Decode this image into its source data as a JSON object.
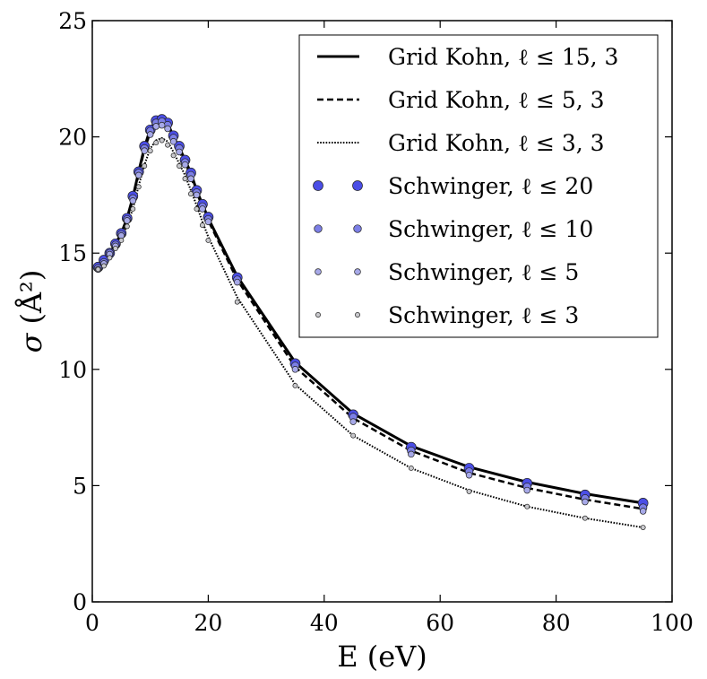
{
  "chart_data": {
    "type": "line",
    "xlabel": "E (eV)",
    "ylabel_symbol": "σ",
    "ylabel_unit": "(Å²)",
    "xlim": [
      0,
      100
    ],
    "ylim": [
      0,
      25
    ],
    "xticks": [
      0,
      20,
      40,
      60,
      80,
      100
    ],
    "yticks": [
      0,
      5,
      10,
      15,
      20,
      25
    ],
    "legend_position": "top-right",
    "series": [
      {
        "name": "Grid Kohn, ℓ ≤ 15, 3",
        "kind": "line",
        "style": "solid",
        "color": "#000000",
        "x": [
          1,
          2,
          3,
          4,
          5,
          6,
          7,
          8,
          9,
          10,
          11,
          12,
          13,
          14,
          15,
          16,
          17,
          18,
          19,
          20,
          25,
          35,
          45,
          55,
          65,
          75,
          85,
          95
        ],
        "y": [
          14.35,
          14.6,
          15.0,
          15.4,
          15.85,
          16.5,
          17.4,
          18.5,
          19.55,
          20.35,
          20.7,
          20.75,
          20.6,
          20.0,
          19.55,
          19.0,
          18.45,
          17.7,
          17.1,
          16.5,
          14.0,
          10.3,
          8.1,
          6.7,
          5.8,
          5.15,
          4.65,
          4.25
        ]
      },
      {
        "name": "Grid Kohn, ℓ ≤ 5, 3",
        "kind": "line",
        "style": "dashed",
        "color": "#000000",
        "x": [
          1,
          2,
          3,
          4,
          5,
          6,
          7,
          8,
          9,
          10,
          11,
          12,
          13,
          14,
          15,
          16,
          17,
          18,
          19,
          20,
          25,
          35,
          45,
          55,
          65,
          75,
          85,
          95
        ],
        "y": [
          14.3,
          14.55,
          14.95,
          15.35,
          15.8,
          16.45,
          17.3,
          18.4,
          19.45,
          20.2,
          20.55,
          20.6,
          20.45,
          19.9,
          19.4,
          18.9,
          18.3,
          17.6,
          17.0,
          16.4,
          13.85,
          10.1,
          7.9,
          6.5,
          5.55,
          4.9,
          4.4,
          4.0
        ]
      },
      {
        "name": "Grid Kohn, ℓ ≤ 3, 3",
        "kind": "line",
        "style": "dotted",
        "color": "#000000",
        "x": [
          1,
          2,
          3,
          4,
          5,
          6,
          7,
          8,
          9,
          10,
          11,
          12,
          13,
          14,
          15,
          16,
          17,
          18,
          19,
          20,
          25,
          35,
          45,
          55,
          65,
          75,
          85,
          95
        ],
        "y": [
          14.3,
          14.5,
          14.85,
          15.25,
          15.6,
          16.2,
          16.9,
          17.9,
          18.8,
          19.5,
          19.85,
          19.95,
          19.8,
          19.35,
          18.85,
          18.35,
          17.7,
          17.05,
          16.35,
          15.7,
          13.1,
          9.35,
          7.15,
          5.75,
          4.8,
          4.1,
          3.6,
          3.2
        ]
      },
      {
        "name": "Schwinger, ℓ ≤ 20",
        "kind": "scatter",
        "color": "#4b4ee6",
        "radius": 5.5,
        "x": [
          1,
          2,
          3,
          4,
          5,
          6,
          7,
          8,
          9,
          10,
          11,
          12,
          13,
          14,
          15,
          16,
          17,
          18,
          19,
          20,
          25,
          35,
          45,
          55,
          65,
          75,
          85,
          95
        ],
        "y": [
          14.4,
          14.7,
          15.0,
          15.4,
          15.85,
          16.5,
          17.45,
          18.5,
          19.6,
          20.3,
          20.7,
          20.75,
          20.6,
          20.05,
          19.6,
          19.0,
          18.45,
          17.7,
          17.1,
          16.55,
          13.95,
          10.25,
          8.05,
          6.65,
          5.75,
          5.1,
          4.6,
          4.25
        ]
      },
      {
        "name": "Schwinger, ℓ ≤ 10",
        "kind": "scatter",
        "color": "#7c7fe6",
        "radius": 4.3,
        "x": [
          1,
          2,
          3,
          4,
          5,
          6,
          7,
          8,
          9,
          10,
          11,
          12,
          13,
          14,
          15,
          16,
          17,
          18,
          19,
          20,
          25,
          35,
          45,
          55,
          65,
          75,
          85,
          95
        ],
        "y": [
          14.35,
          14.6,
          15.0,
          15.35,
          15.8,
          16.45,
          17.35,
          18.45,
          19.5,
          20.25,
          20.6,
          20.65,
          20.5,
          19.95,
          19.5,
          18.9,
          18.35,
          17.6,
          17.0,
          16.45,
          13.85,
          10.15,
          7.95,
          6.5,
          5.6,
          4.95,
          4.45,
          4.05
        ]
      },
      {
        "name": "Schwinger, ℓ ≤ 5",
        "kind": "scatter",
        "color": "#a7a9e8",
        "radius": 3.4,
        "x": [
          1,
          2,
          3,
          4,
          5,
          6,
          7,
          8,
          9,
          10,
          11,
          12,
          13,
          14,
          15,
          16,
          17,
          18,
          19,
          20,
          25,
          35,
          45,
          55,
          65,
          75,
          85,
          95
        ],
        "y": [
          14.3,
          14.55,
          14.95,
          15.3,
          15.75,
          16.4,
          17.25,
          18.35,
          19.4,
          20.1,
          20.45,
          20.5,
          20.35,
          19.8,
          19.35,
          18.8,
          18.2,
          17.5,
          16.9,
          16.35,
          13.75,
          10.0,
          7.75,
          6.35,
          5.45,
          4.8,
          4.3,
          3.9
        ]
      },
      {
        "name": "Schwinger, ℓ ≤ 3",
        "kind": "scatter",
        "color": "#c8c8cc",
        "radius": 2.6,
        "x": [
          1,
          2,
          3,
          4,
          5,
          6,
          7,
          8,
          9,
          10,
          11,
          12,
          13,
          14,
          15,
          16,
          17,
          18,
          19,
          20,
          25,
          35,
          45,
          55,
          65,
          75,
          85,
          95
        ],
        "y": [
          14.3,
          14.45,
          14.8,
          15.2,
          15.55,
          16.15,
          16.9,
          17.85,
          18.75,
          19.4,
          19.75,
          19.85,
          19.65,
          19.2,
          18.75,
          18.2,
          17.55,
          16.9,
          16.2,
          15.55,
          12.9,
          9.3,
          7.15,
          5.75,
          4.75,
          4.1,
          3.6,
          3.2
        ]
      }
    ]
  }
}
